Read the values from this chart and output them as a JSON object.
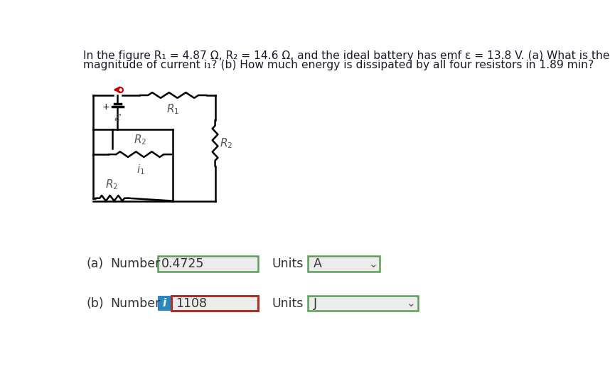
{
  "title_line1": "In the figure R₁ = 4.87 Ω, R₂ = 14.6 Ω, and the ideal battery has emf ε = 13.8 V. (a) What is the",
  "title_line2": "magnitude of current i₁? (b) How much energy is dissipated by all four resistors in 1.89 min?",
  "part_a_label": "(a)",
  "part_a_number_label": "Number",
  "part_a_value": "0.4725",
  "part_a_units_label": "Units",
  "part_a_units_value": "A",
  "part_b_label": "(b)",
  "part_b_number_label": "Number",
  "part_b_value": "1108",
  "part_b_units_label": "Units",
  "part_b_units_value": "J",
  "bg_color": "#ffffff",
  "box_border_green": "#5a9e5a",
  "box_border_red": "#a93226",
  "box_fill": "#ececec",
  "info_blue": "#2e86c1",
  "text_color": "#333333",
  "circuit_line_color": "#000000",
  "arrow_color": "#cc0000",
  "label_color": "#555555",
  "font_size_title": 11.2,
  "font_size_body": 12.5
}
